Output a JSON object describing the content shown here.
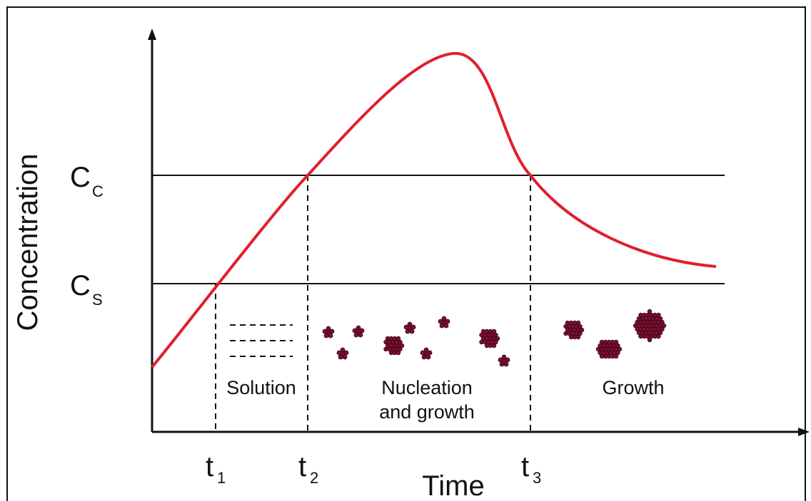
{
  "axes": {
    "y_label": "Concentration",
    "x_label": "Time"
  },
  "levels": [
    {
      "label": "C",
      "sub": "C"
    },
    {
      "label": "C",
      "sub": "S"
    }
  ],
  "times": [
    {
      "label": "t",
      "sub": "1"
    },
    {
      "label": "t",
      "sub": "2"
    },
    {
      "label": "t",
      "sub": "3"
    }
  ],
  "regions": [
    {
      "lines": [
        "Solution"
      ]
    },
    {
      "lines": [
        "Nucleation",
        "and growth"
      ]
    },
    {
      "lines": [
        "Growth"
      ]
    }
  ]
}
